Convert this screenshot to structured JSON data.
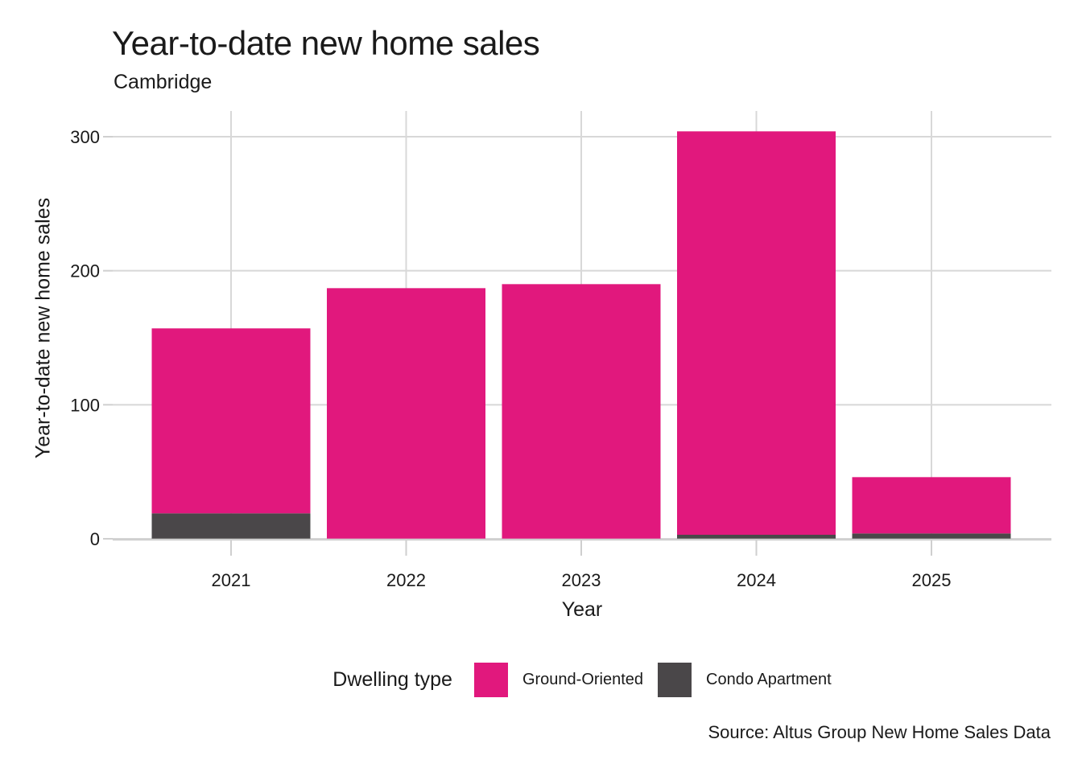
{
  "chart_data": {
    "type": "bar",
    "stacked": true,
    "title": "Year-to-date new home sales",
    "subtitle": "Cambridge",
    "xlabel": "Year",
    "ylabel": "Year-to-date new home sales",
    "categories": [
      "2021",
      "2022",
      "2023",
      "2024",
      "2025"
    ],
    "series": [
      {
        "name": "Ground-Oriented",
        "color": "#E1187D",
        "values": [
          138,
          187,
          190,
          301,
          42
        ]
      },
      {
        "name": "Condo Apartment",
        "color": "#4A4749",
        "values": [
          19,
          0,
          0,
          3,
          4
        ]
      }
    ],
    "stack_order_bottom_to_top": [
      "Condo Apartment",
      "Ground-Oriented"
    ],
    "totals": [
      157,
      187,
      190,
      304,
      46
    ],
    "y_ticks": [
      0,
      100,
      200,
      300
    ],
    "ylim": [
      0,
      319
    ],
    "grid": true,
    "legend": {
      "title": "Dwelling type",
      "position": "bottom"
    },
    "source": "Source: Altus Group New Home Sales Data"
  },
  "colors": {
    "ground_oriented": "#E1187D",
    "condo_apartment": "#4A4749",
    "gridline": "#D8D8D8",
    "axis_line": "#CFCFCF",
    "text": "#1A1A1A"
  }
}
